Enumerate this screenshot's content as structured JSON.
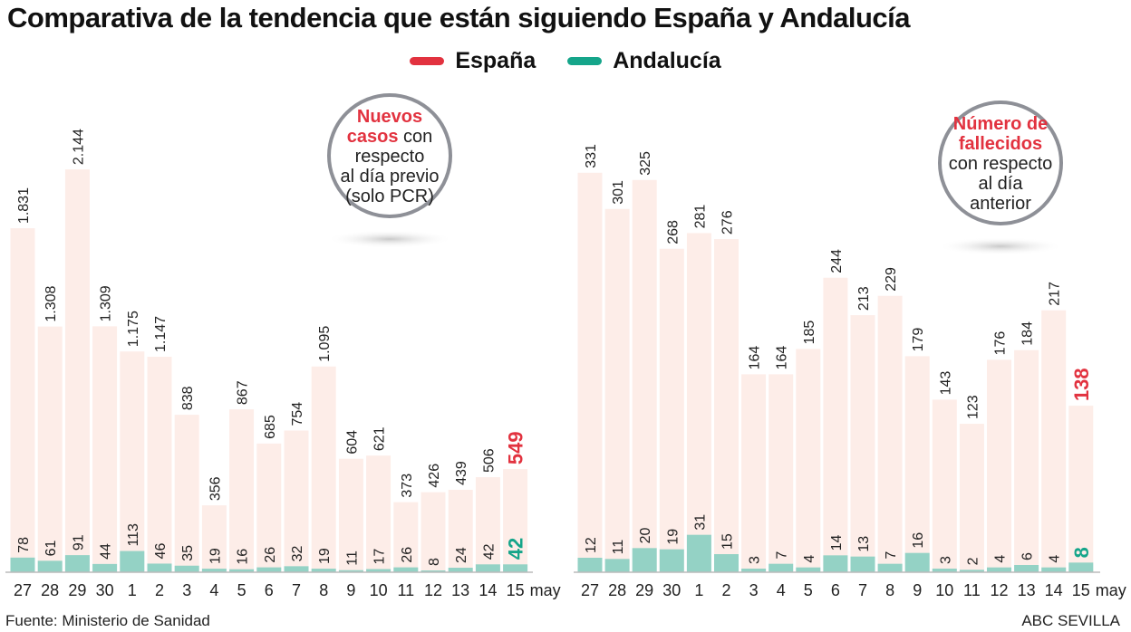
{
  "title": "Comparativa de la tendencia que están siguiendo España y Andalucía",
  "source": "Fuente: Ministerio de Sanidad",
  "credit": "ABC SEVILLA",
  "colors": {
    "espana": "#e2323f",
    "andalucia": "#15a58a",
    "espana_bar": "#fdede8",
    "andalucia_bar": "#94d2c5"
  },
  "chart_data": [
    {
      "type": "bar",
      "annotation": [
        "Nuevos",
        "casos",
        "con",
        "respecto",
        "al día previo",
        "(solo PCR)"
      ],
      "categories": [
        "27",
        "28",
        "29",
        "30",
        "1",
        "2",
        "3",
        "4",
        "5",
        "6",
        "7",
        "8",
        "9",
        "10",
        "11",
        "12",
        "13",
        "14",
        "15"
      ],
      "x_unit": "may",
      "legend_position": "top",
      "grid": false,
      "series": [
        {
          "name": "España",
          "values": [
            1831,
            1308,
            2144,
            1309,
            1175,
            1147,
            838,
            356,
            867,
            685,
            754,
            1095,
            604,
            621,
            373,
            426,
            439,
            506,
            549
          ],
          "labels": [
            "1.831",
            "1.308",
            "2.144",
            "1.309",
            "1.175",
            "1.147",
            "838",
            "356",
            "867",
            "685",
            "754",
            "1.095",
            "604",
            "621",
            "373",
            "426",
            "439",
            "506",
            "549"
          ]
        },
        {
          "name": "Andalucía",
          "values": [
            78,
            61,
            91,
            44,
            113,
            46,
            35,
            19,
            16,
            26,
            32,
            19,
            11,
            17,
            26,
            8,
            24,
            42,
            42
          ],
          "labels": [
            "78",
            "61",
            "91",
            "44",
            "113",
            "46",
            "35",
            "19",
            "16",
            "26",
            "32",
            "19",
            "11",
            "17",
            "26",
            "8",
            "24",
            "42",
            "42"
          ]
        }
      ]
    },
    {
      "type": "bar",
      "annotation": [
        "Número de",
        "fallecidos",
        "con respecto",
        "al día",
        "anterior"
      ],
      "categories": [
        "27",
        "28",
        "29",
        "30",
        "1",
        "2",
        "3",
        "4",
        "5",
        "6",
        "7",
        "8",
        "9",
        "10",
        "11",
        "12",
        "13",
        "14",
        "15"
      ],
      "x_unit": "may",
      "legend_position": "top",
      "grid": false,
      "series": [
        {
          "name": "España",
          "values": [
            331,
            301,
            325,
            268,
            281,
            276,
            164,
            164,
            185,
            244,
            213,
            229,
            179,
            143,
            123,
            176,
            184,
            217,
            138
          ],
          "labels": [
            "331",
            "301",
            "325",
            "268",
            "281",
            "276",
            "164",
            "164",
            "185",
            "244",
            "213",
            "229",
            "179",
            "143",
            "123",
            "176",
            "184",
            "217",
            "138"
          ]
        },
        {
          "name": "Andalucía",
          "values": [
            12,
            11,
            20,
            19,
            31,
            15,
            3,
            7,
            4,
            14,
            13,
            7,
            16,
            3,
            2,
            4,
            6,
            4,
            8
          ],
          "labels": [
            "12",
            "11",
            "20",
            "19",
            "31",
            "15",
            "3",
            "7",
            "4",
            "14",
            "13",
            "7",
            "16",
            "3",
            "2",
            "4",
            "6",
            "4",
            "8"
          ]
        }
      ]
    }
  ]
}
